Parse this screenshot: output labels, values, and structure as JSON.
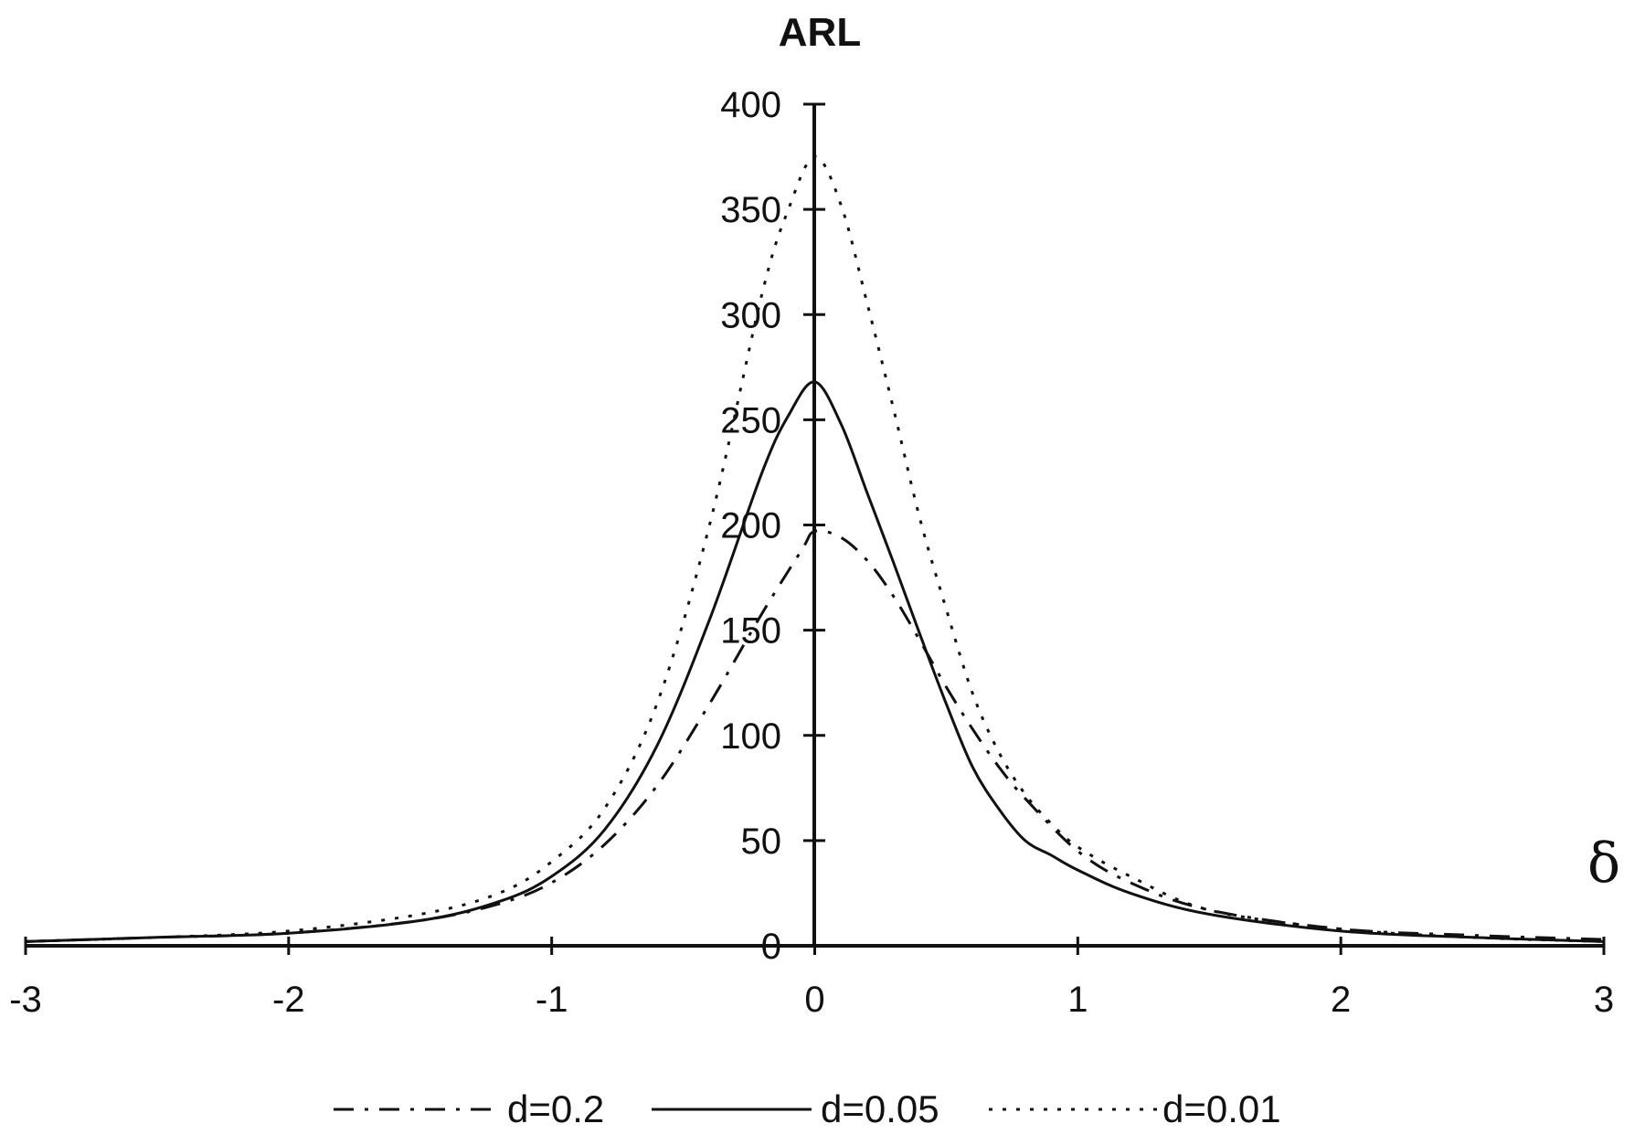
{
  "chart_data": {
    "type": "line",
    "ylabel": "ARL",
    "xlabel": "δ",
    "xlim": [
      -3,
      3
    ],
    "ylim": [
      0,
      400
    ],
    "x_ticks": [
      "-3",
      "-2",
      "-1",
      "0",
      "1",
      "2",
      "3"
    ],
    "y_ticks": [
      "0",
      "50",
      "100",
      "150",
      "200",
      "250",
      "300",
      "350",
      "400"
    ],
    "grid": false,
    "legend_position": "bottom",
    "series": [
      {
        "name": "d=0.2",
        "dash": "dash-dot",
        "x": [
          -3,
          -2.5,
          -2,
          -1.5,
          -1.2,
          -1,
          -0.8,
          -0.6,
          -0.4,
          -0.2,
          -0.05,
          0,
          0.1,
          0.2,
          0.3,
          0.4,
          0.5,
          0.6,
          0.7,
          0.8,
          1,
          1.2,
          1.5,
          2,
          2.5,
          3
        ],
        "y": [
          2,
          4,
          6,
          12,
          20,
          30,
          48,
          76,
          115,
          158,
          188,
          197,
          194,
          183,
          166,
          145,
          123,
          103,
          85,
          70,
          45,
          30,
          17,
          8,
          5,
          3
        ]
      },
      {
        "name": "d=0.05",
        "dash": "solid",
        "x": [
          -3,
          -2.5,
          -2,
          -1.5,
          -1.2,
          -1,
          -0.8,
          -0.6,
          -0.4,
          -0.2,
          -0.1,
          0,
          0.1,
          0.2,
          0.3,
          0.4,
          0.5,
          0.6,
          0.7,
          0.8,
          0.9,
          1,
          1.2,
          1.5,
          2,
          2.5,
          3
        ],
        "y": [
          2,
          4,
          6,
          12,
          21,
          33,
          55,
          95,
          155,
          225,
          252,
          268,
          248,
          215,
          182,
          148,
          115,
          85,
          65,
          50,
          43,
          36,
          25,
          15,
          7,
          4,
          2
        ]
      },
      {
        "name": "d=0.01",
        "dash": "dotted",
        "x": [
          -3,
          -2.5,
          -2,
          -1.5,
          -1.2,
          -1,
          -0.8,
          -0.6,
          -0.4,
          -0.2,
          -0.1,
          0,
          0.1,
          0.2,
          0.3,
          0.4,
          0.5,
          0.6,
          0.7,
          0.8,
          0.9,
          1,
          1.2,
          1.5,
          2,
          2.5,
          3
        ],
        "y": [
          2,
          4,
          7,
          15,
          25,
          40,
          65,
          115,
          200,
          310,
          350,
          375,
          352,
          305,
          255,
          203,
          160,
          120,
          92,
          72,
          58,
          47,
          33,
          17,
          8,
          4,
          2
        ]
      }
    ]
  }
}
